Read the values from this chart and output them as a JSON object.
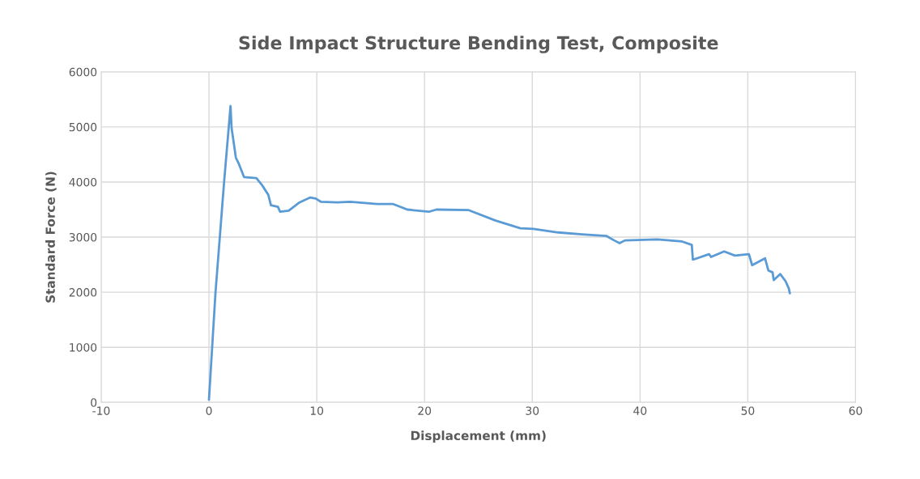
{
  "chart_data": {
    "type": "line",
    "title": "Side Impact Structure Bending Test, Composite",
    "xlabel": "Displacement (mm)",
    "ylabel": "Standard Force (N)",
    "xlim": [
      -10,
      60
    ],
    "xticks": [
      -10,
      0,
      10,
      20,
      30,
      40,
      50,
      60
    ],
    "ylim": [
      0,
      6000
    ],
    "yticks": [
      0,
      1000,
      2000,
      3000,
      4000,
      5000,
      6000
    ],
    "grid": true,
    "series": [
      {
        "color": "#5b9bd5",
        "x": [
          0,
          0.6,
          1.4,
          2.0,
          2.1,
          2.5,
          2.75,
          3.25,
          4.4,
          4.9,
          5.5,
          5.75,
          6.4,
          6.6,
          7.4,
          8.4,
          9.4,
          9.9,
          10.4,
          11.9,
          13.1,
          15.6,
          17.1,
          18.4,
          20.4,
          21.1,
          24.1,
          26.6,
          28.9,
          30.1,
          32.4,
          34.6,
          36.9,
          37.6,
          38.1,
          38.6,
          41.6,
          43.9,
          44.8,
          44.9,
          46.4,
          46.6,
          47.8,
          48.8,
          50.1,
          50.4,
          51.6,
          51.9,
          52.3,
          52.4,
          53.0,
          53.5,
          53.8,
          53.9
        ],
        "values": [
          50,
          1980,
          3990,
          5380,
          4980,
          4440,
          4340,
          4090,
          4070,
          3950,
          3770,
          3580,
          3550,
          3460,
          3480,
          3630,
          3720,
          3700,
          3640,
          3630,
          3640,
          3600,
          3600,
          3500,
          3460,
          3500,
          3490,
          3300,
          3160,
          3150,
          3085,
          3050,
          3020,
          2940,
          2890,
          2940,
          2960,
          2920,
          2860,
          2590,
          2690,
          2640,
          2740,
          2665,
          2690,
          2490,
          2615,
          2395,
          2360,
          2220,
          2330,
          2200,
          2070,
          1980
        ]
      }
    ]
  }
}
